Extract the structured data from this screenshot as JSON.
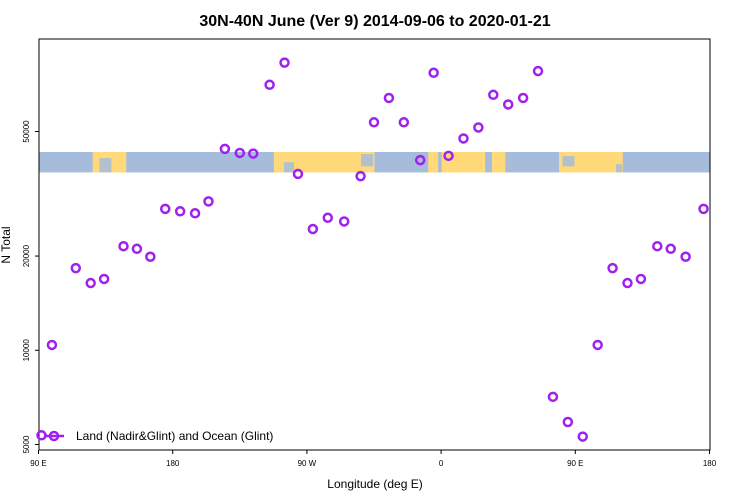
{
  "chart_data": {
    "type": "scatter",
    "title": "30N-40N June (Ver 9)   2014-09-06 to 2020-01-21",
    "xlabel": "Longitude (deg E)",
    "ylabel": "N Total",
    "y_scale": "log",
    "xlim": [
      90,
      540
    ],
    "ylim": [
      5000,
      100000
    ],
    "x_ticks": [
      {
        "value": 90,
        "label": "90 E"
      },
      {
        "value": 180,
        "label": "180"
      },
      {
        "value": 270,
        "label": "90 W"
      },
      {
        "value": 360,
        "label": "0"
      },
      {
        "value": 450,
        "label": "90 E"
      },
      {
        "value": 540,
        "label": "180"
      }
    ],
    "y_ticks": [
      {
        "value": 5000,
        "label": "5000"
      },
      {
        "value": 10000,
        "label": "10000"
      },
      {
        "value": 20000,
        "label": "20000"
      },
      {
        "value": 50000,
        "label": "50000"
      }
    ],
    "map_band": {
      "lat_range": "30N-40N",
      "ocean_color": "#a6bcdc",
      "land_color": "#ffd97a",
      "y_range": [
        37000,
        43000
      ]
    },
    "series": [
      {
        "name": "Land (Nadir&Glint) and Ocean (Glint)",
        "color": "#a020f0",
        "marker": "circle-open",
        "points": [
          {
            "x": 92,
            "y": 5350
          },
          {
            "x": 99,
            "y": 10400
          },
          {
            "x": 115,
            "y": 18300
          },
          {
            "x": 125,
            "y": 16400
          },
          {
            "x": 134,
            "y": 16900
          },
          {
            "x": 147,
            "y": 21500
          },
          {
            "x": 156,
            "y": 21100
          },
          {
            "x": 165,
            "y": 19900
          },
          {
            "x": 175,
            "y": 28300
          },
          {
            "x": 185,
            "y": 27800
          },
          {
            "x": 195,
            "y": 27400
          },
          {
            "x": 204,
            "y": 29900
          },
          {
            "x": 215,
            "y": 44000
          },
          {
            "x": 225,
            "y": 42700
          },
          {
            "x": 234,
            "y": 42500
          },
          {
            "x": 245,
            "y": 70500
          },
          {
            "x": 255,
            "y": 83000
          },
          {
            "x": 264,
            "y": 36600
          },
          {
            "x": 274,
            "y": 24400
          },
          {
            "x": 284,
            "y": 26500
          },
          {
            "x": 295,
            "y": 25800
          },
          {
            "x": 306,
            "y": 36000
          },
          {
            "x": 315,
            "y": 53500
          },
          {
            "x": 325,
            "y": 64000
          },
          {
            "x": 335,
            "y": 53500
          },
          {
            "x": 346,
            "y": 40500
          },
          {
            "x": 355,
            "y": 77000
          },
          {
            "x": 365,
            "y": 41800
          },
          {
            "x": 375,
            "y": 47500
          },
          {
            "x": 385,
            "y": 51500
          },
          {
            "x": 395,
            "y": 65500
          },
          {
            "x": 405,
            "y": 61000
          },
          {
            "x": 415,
            "y": 64000
          },
          {
            "x": 425,
            "y": 78000
          },
          {
            "x": 435,
            "y": 7100
          },
          {
            "x": 445,
            "y": 5900
          },
          {
            "x": 455,
            "y": 5300
          },
          {
            "x": 465,
            "y": 10400
          },
          {
            "x": 475,
            "y": 18300
          },
          {
            "x": 485,
            "y": 16400
          },
          {
            "x": 494,
            "y": 16900
          },
          {
            "x": 505,
            "y": 21500
          },
          {
            "x": 514,
            "y": 21100
          },
          {
            "x": 524,
            "y": 19900
          },
          {
            "x": 536,
            "y": 28300
          }
        ]
      }
    ],
    "legend": {
      "placement": "bottom-left"
    }
  }
}
